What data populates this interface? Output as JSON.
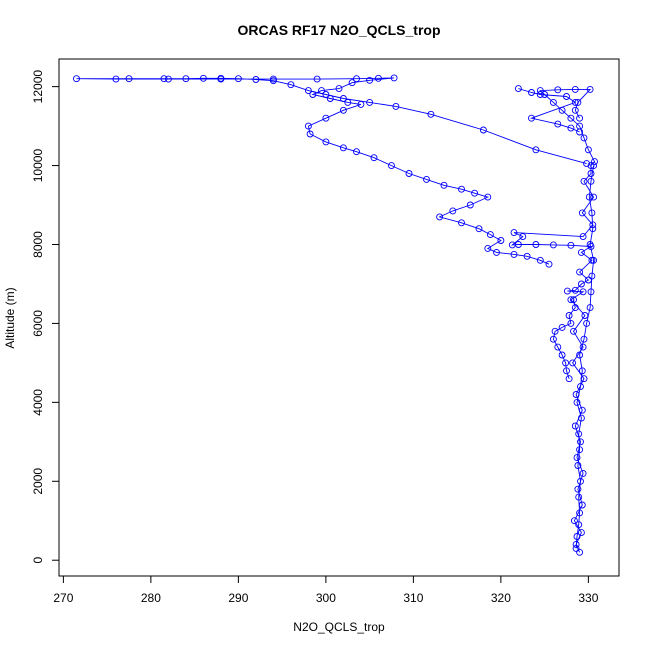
{
  "chart_data": {
    "type": "scatter",
    "title": "ORCAS RF17 N2O_QCLS_trop",
    "xlabel": "N2O_QCLS_trop",
    "ylabel": "Altitude (m)",
    "xlim": [
      269.5,
      333.5
    ],
    "ylim": [
      -400,
      12700
    ],
    "x_ticks": [
      270,
      280,
      290,
      300,
      310,
      320,
      330
    ],
    "y_ticks": [
      0,
      2000,
      4000,
      6000,
      8000,
      10000,
      12000
    ],
    "grid": false,
    "legend": "none",
    "color": "#0000ff",
    "marker": "open-circle",
    "connected": true,
    "series": [
      {
        "points": [
          [
            329,
            200
          ],
          [
            328.6,
            400
          ],
          [
            329.2,
            700
          ],
          [
            328.4,
            1000
          ],
          [
            329.3,
            1400
          ],
          [
            328.8,
            1800
          ],
          [
            329.4,
            2200
          ],
          [
            328.7,
            2600
          ],
          [
            329.1,
            3000
          ],
          [
            328.5,
            3400
          ],
          [
            329.3,
            3800
          ],
          [
            328.6,
            4200
          ],
          [
            329.5,
            4600
          ],
          [
            328.2,
            5000
          ],
          [
            329.4,
            5400
          ],
          [
            328.3,
            5800
          ],
          [
            329.6,
            6200
          ],
          [
            328.0,
            6600
          ],
          [
            329.4,
            6800
          ],
          [
            327.6,
            6820
          ],
          [
            328.5,
            6840
          ],
          [
            329.2,
            7000
          ],
          [
            330.0,
            7100
          ],
          [
            329.0,
            7300
          ],
          [
            330.4,
            7600
          ],
          [
            329.2,
            7800
          ],
          [
            330.3,
            7950
          ],
          [
            328.0,
            7980
          ],
          [
            326.0,
            7990
          ],
          [
            324.0,
            8000
          ],
          [
            322.0,
            8000
          ],
          [
            321.3,
            7990
          ],
          [
            322.5,
            8200
          ],
          [
            321.5,
            8300
          ],
          [
            329.4,
            8200
          ],
          [
            330.5,
            8500
          ],
          [
            329.3,
            8800
          ],
          [
            330.6,
            9200
          ],
          [
            329.5,
            9600
          ],
          [
            330.3,
            9800
          ],
          [
            330.3,
            10000
          ],
          [
            330.7,
            10100
          ],
          [
            330.0,
            10400
          ],
          [
            329.5,
            10700
          ],
          [
            329.0,
            11000
          ],
          [
            328.0,
            11200
          ],
          [
            327.0,
            11400
          ],
          [
            326.0,
            11600
          ],
          [
            325.0,
            11800
          ],
          [
            324.5,
            11900
          ],
          [
            326.5,
            11920
          ],
          [
            328.5,
            11930
          ],
          [
            330.2,
            11930
          ],
          [
            328.8,
            11600
          ],
          [
            328.5,
            11400
          ],
          [
            329.0,
            11200
          ]
        ]
      },
      {
        "points": [
          [
            329.8,
            10050
          ],
          [
            324.0,
            10400
          ],
          [
            318.0,
            10900
          ],
          [
            312.0,
            11300
          ],
          [
            308.0,
            11500
          ],
          [
            305.0,
            11600
          ],
          [
            302.0,
            11700
          ],
          [
            300.0,
            11800
          ],
          [
            298.0,
            11900
          ],
          [
            296.0,
            12050
          ],
          [
            294.0,
            12150
          ],
          [
            292.0,
            12180
          ],
          [
            290.0,
            12200
          ],
          [
            288.0,
            12210
          ],
          [
            286.0,
            12210
          ],
          [
            284.0,
            12200
          ],
          [
            281.5,
            12200
          ],
          [
            277.5,
            12200
          ],
          [
            271.5,
            12200
          ],
          [
            276.0,
            12190
          ],
          [
            282.0,
            12190
          ],
          [
            288.0,
            12190
          ],
          [
            294.0,
            12190
          ],
          [
            299.0,
            12190
          ],
          [
            303.5,
            12200
          ],
          [
            306.0,
            12210
          ],
          [
            307.8,
            12220
          ],
          [
            305.0,
            12160
          ],
          [
            303.0,
            12100
          ],
          [
            301.5,
            11950
          ],
          [
            299.5,
            11900
          ],
          [
            298.5,
            11800
          ],
          [
            300.5,
            11700
          ],
          [
            302.5,
            11600
          ],
          [
            304.0,
            11550
          ],
          [
            302.0,
            11400
          ],
          [
            300.0,
            11200
          ],
          [
            298.0,
            11000
          ],
          [
            298.2,
            10800
          ],
          [
            300.0,
            10600
          ],
          [
            302.0,
            10450
          ],
          [
            303.5,
            10350
          ],
          [
            305.5,
            10200
          ],
          [
            307.5,
            10000
          ],
          [
            309.5,
            9800
          ],
          [
            311.5,
            9650
          ],
          [
            313.5,
            9500
          ],
          [
            315.5,
            9400
          ],
          [
            317.0,
            9300
          ],
          [
            318.5,
            9200
          ],
          [
            316.5,
            9000
          ],
          [
            314.5,
            8850
          ],
          [
            313.0,
            8700
          ],
          [
            315.5,
            8550
          ],
          [
            317.5,
            8400
          ],
          [
            318.8,
            8250
          ],
          [
            320.0,
            8100
          ],
          [
            318.5,
            7900
          ],
          [
            319.5,
            7800
          ],
          [
            321.5,
            7750
          ],
          [
            323.0,
            7700
          ],
          [
            324.5,
            7600
          ],
          [
            325.5,
            7500
          ]
        ]
      },
      {
        "points": [
          [
            322.0,
            11950
          ],
          [
            323.5,
            11850
          ],
          [
            324.5,
            11800
          ],
          [
            327.5,
            11750
          ],
          [
            328.5,
            11600
          ],
          [
            323.5,
            11200
          ],
          [
            326.5,
            11050
          ],
          [
            328.0,
            10950
          ],
          [
            329.0,
            10850
          ]
        ]
      },
      {
        "points": [
          [
            328.6,
            300
          ],
          [
            328.7,
            600
          ],
          [
            328.9,
            900
          ],
          [
            329.0,
            1200
          ],
          [
            328.9,
            1600
          ],
          [
            329.1,
            2000
          ],
          [
            328.8,
            2400
          ],
          [
            329.0,
            2800
          ],
          [
            328.9,
            3200
          ],
          [
            329.2,
            3600
          ],
          [
            328.7,
            4000
          ],
          [
            329.1,
            4400
          ],
          [
            329.3,
            4800
          ],
          [
            329.0,
            5200
          ],
          [
            329.5,
            5600
          ],
          [
            329.8,
            6000
          ],
          [
            330.2,
            6400
          ],
          [
            330.3,
            6800
          ],
          [
            330.4,
            7200
          ],
          [
            330.6,
            7600
          ],
          [
            330.2,
            8000
          ],
          [
            330.5,
            8400
          ],
          [
            330.4,
            8800
          ],
          [
            330.1,
            9200
          ],
          [
            330.3,
            9600
          ],
          [
            330.6,
            10000
          ]
        ]
      },
      {
        "points": [
          [
            327.8,
            4600
          ],
          [
            327.5,
            4800
          ],
          [
            327.4,
            5000
          ],
          [
            327.0,
            5200
          ],
          [
            326.5,
            5400
          ],
          [
            326.0,
            5600
          ],
          [
            326.2,
            5800
          ],
          [
            327.0,
            5900
          ],
          [
            328.0,
            6000
          ],
          [
            327.8,
            6200
          ],
          [
            328.5,
            6400
          ],
          [
            328.3,
            6600
          ]
        ]
      }
    ]
  }
}
